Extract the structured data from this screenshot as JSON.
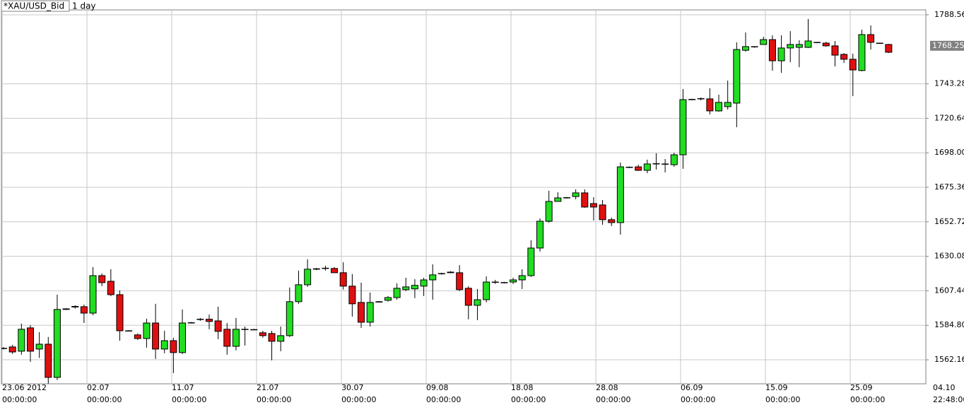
{
  "chart_data": {
    "type": "candlestick",
    "title": "*XAU/USD_Bid",
    "subtitle": "1 day",
    "up_color": "#22dd22",
    "down_color": "#e01010",
    "grid": true,
    "ylim": [
      1546.4,
      1791.8
    ],
    "yticks": [
      1788.56,
      1743.28,
      1720.64,
      {
        "value": 1698,
        "label": "1698.00"
      },
      1675.36,
      1652.72,
      1630.08,
      1607.44,
      {
        "value": 1584.8,
        "label": "1584.80"
      },
      1562.16
    ],
    "current_price": 1768.25,
    "xlim": [
      -0.24,
      103.16
    ],
    "xticks": [
      {
        "value": -0.16,
        "label": "23.06 2012",
        "time": "00:00:00"
      },
      {
        "value": 9.33,
        "label": "02.07",
        "time": "00:00:00"
      },
      {
        "value": 18.81,
        "label": "11.07",
        "time": "00:00:00"
      },
      {
        "value": 28.3,
        "label": "21.07",
        "time": "00:00:00"
      },
      {
        "value": 37.79,
        "label": "30.07",
        "time": "00:00:00"
      },
      {
        "value": 47.27,
        "label": "09.08",
        "time": "00:00:00"
      },
      {
        "value": 56.76,
        "label": "18.08",
        "time": "00:00:00"
      },
      {
        "value": 66.25,
        "label": "28.08",
        "time": "00:00:00"
      },
      {
        "value": 75.73,
        "label": "06.09",
        "time": "00:00:00"
      },
      {
        "value": 85.22,
        "label": "15.09",
        "time": "00:00:00"
      },
      {
        "value": 94.7,
        "label": "25.09",
        "time": "00:00:00"
      },
      {
        "value": 103.95,
        "label": "04.10",
        "time": "22:48:00"
      }
    ],
    "open": [
      1569.7,
      1570.6,
      1567.8,
      1583.1,
      1569.2,
      1572.4,
      1550.6,
      1595.2,
      1596.8,
      1597.0,
      1592.8,
      1617.4,
      1613.7,
      1604.9,
      1581.2,
      1578.5,
      1576.1,
      1586.3,
      1569.2,
      1574.7,
      1566.9,
      1586.3,
      1588.8,
      1588.8,
      1587.7,
      1582.2,
      1571.0,
      1582.2,
      1582.0,
      1579.9,
      1579.4,
      1574.3,
      1578.0,
      1600.3,
      1611.4,
      1621.6,
      1622.1,
      1622.1,
      1619.3,
      1610.5,
      1599.8,
      1586.8,
      1600.3,
      1601.2,
      1603.0,
      1608.2,
      1608.7,
      1610.5,
      1614.6,
      1618.8,
      1619.3,
      1619.3,
      1609.1,
      1597.9,
      1601.6,
      1613.2,
      1612.8,
      1613.2,
      1614.6,
      1617.4,
      1635.5,
      1653.1,
      1666.1,
      1668.4,
      1669.3,
      1671.7,
      1664.7,
      1663.8,
      1654.1,
      1652.2,
      1688.4,
      1688.8,
      1686.5,
      1690.7,
      1690.7,
      1690.2,
      1696.7,
      1732.9,
      1733.4,
      1733.4,
      1725.5,
      1728.3,
      1730.6,
      1765.3,
      1767.7,
      1769.1,
      1772.3,
      1758.4,
      1766.8,
      1767.2,
      1767.2,
      1770.5,
      1770.0,
      1768.2,
      1762.6,
      1759.4,
      1752.0,
      1775.6,
      1770.0,
      1769.1
    ],
    "high": [
      1570.5,
      1572.0,
      1585.9,
      1585.0,
      1580.3,
      1577.1,
      1604.9,
      1596.0,
      1597.9,
      1598.4,
      1623.0,
      1618.8,
      1621.6,
      1607.7,
      1581.6,
      1579.4,
      1589.1,
      1598.9,
      1581.2,
      1576.6,
      1595.2,
      1587.0,
      1589.6,
      1591.9,
      1597.0,
      1586.3,
      1589.6,
      1584.0,
      1582.5,
      1581.2,
      1581.2,
      1584.0,
      1609.6,
      1620.7,
      1628.1,
      1622.5,
      1623.9,
      1623.0,
      1626.2,
      1618.4,
      1612.8,
      1606.3,
      1600.6,
      1604.0,
      1612.3,
      1616.0,
      1615.1,
      1616.0,
      1624.8,
      1619.3,
      1620.3,
      1624.3,
      1610.5,
      1608.6,
      1616.9,
      1614.6,
      1613.3,
      1616.0,
      1621.6,
      1640.6,
      1654.9,
      1673.1,
      1672.2,
      1669.0,
      1674.0,
      1674.0,
      1668.9,
      1667.0,
      1655.5,
      1691.6,
      1689.0,
      1690.2,
      1693.5,
      1697.7,
      1693.9,
      1698.1,
      1739.9,
      1733.5,
      1734.3,
      1740.4,
      1736.2,
      1745.4,
      1770.5,
      1777.0,
      1768.0,
      1774.2,
      1775.1,
      1775.1,
      1777.9,
      1771.9,
      1785.8,
      1770.8,
      1770.9,
      1771.4,
      1763.5,
      1763.1,
      1778.8,
      1781.6,
      1770.3,
      1769.5
    ],
    "low": [
      1569.0,
      1566.0,
      1565.5,
      1560.8,
      1563.4,
      1546.5,
      1548.8,
      1595.0,
      1595.7,
      1586.3,
      1591.4,
      1610.5,
      1603.9,
      1574.7,
      1580.8,
      1575.2,
      1570.1,
      1562.7,
      1566.4,
      1553.4,
      1565.9,
      1586.0,
      1587.7,
      1582.2,
      1575.7,
      1565.5,
      1568.3,
      1571.5,
      1581.6,
      1576.6,
      1561.8,
      1567.8,
      1577.1,
      1598.9,
      1610.0,
      1621.0,
      1620.7,
      1619.3,
      1608.2,
      1590.5,
      1583.1,
      1584.0,
      1599.8,
      1600.3,
      1601.6,
      1607.2,
      1602.6,
      1604.0,
      1601.6,
      1618.0,
      1619.0,
      1607.2,
      1588.7,
      1588.2,
      1599.8,
      1611.9,
      1612.3,
      1611.9,
      1608.6,
      1616.5,
      1633.2,
      1652.2,
      1665.9,
      1668.0,
      1667.5,
      1661.9,
      1653.6,
      1650.8,
      1649.9,
      1644.3,
      1688.0,
      1686.1,
      1684.6,
      1687.0,
      1685.1,
      1688.8,
      1687.5,
      1732.5,
      1732.4,
      1723.2,
      1725.0,
      1726.4,
      1714.8,
      1764.4,
      1767.0,
      1769.1,
      1751.9,
      1750.5,
      1757.5,
      1754.2,
      1766.8,
      1770.0,
      1767.7,
      1754.7,
      1757.0,
      1735.2,
      1751.5,
      1765.8,
      1769.5,
      1763.5
    ],
    "close": [
      1569.7,
      1567.3,
      1582.2,
      1567.8,
      1572.4,
      1550.6,
      1595.2,
      1595.6,
      1597.2,
      1592.8,
      1617.4,
      1612.8,
      1604.9,
      1581.2,
      1581.0,
      1576.1,
      1586.3,
      1569.2,
      1574.7,
      1566.9,
      1586.3,
      1586.5,
      1588.6,
      1587.3,
      1580.8,
      1571.0,
      1582.2,
      1582.0,
      1582.0,
      1578.0,
      1574.3,
      1578.0,
      1600.3,
      1611.4,
      1621.6,
      1621.9,
      1622.3,
      1619.3,
      1610.5,
      1598.9,
      1586.8,
      1599.8,
      1600.0,
      1603.0,
      1609.1,
      1610.0,
      1611.0,
      1614.6,
      1617.9,
      1618.8,
      1619.7,
      1608.2,
      1597.9,
      1601.6,
      1613.2,
      1613.0,
      1612.9,
      1614.6,
      1617.4,
      1635.5,
      1653.1,
      1666.1,
      1668.4,
      1668.6,
      1671.7,
      1662.4,
      1662.4,
      1654.1,
      1652.2,
      1688.8,
      1688.6,
      1686.5,
      1690.7,
      1690.9,
      1690.5,
      1696.7,
      1732.9,
      1733.1,
      1733.6,
      1725.5,
      1731.1,
      1731.1,
      1765.8,
      1767.7,
      1767.5,
      1772.3,
      1758.4,
      1766.8,
      1769.1,
      1769.1,
      1771.4,
      1770.3,
      1768.2,
      1762.1,
      1759.4,
      1752.4,
      1775.6,
      1770.5,
      1769.8,
      1764.0
    ]
  }
}
